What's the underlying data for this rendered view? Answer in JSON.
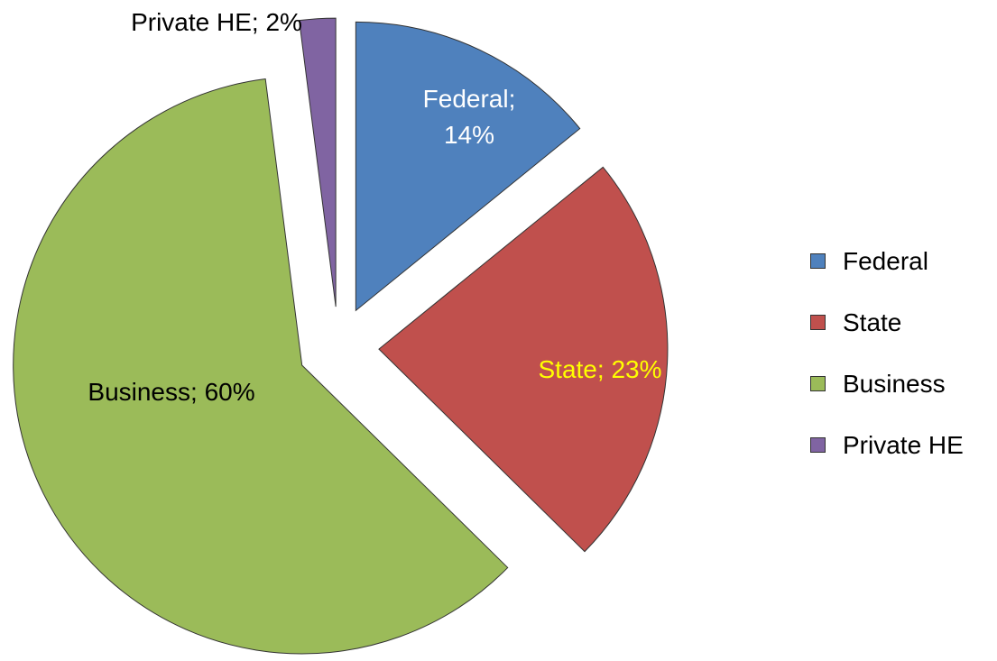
{
  "chart_data": {
    "type": "pie",
    "categories": [
      "Federal",
      "State",
      "Business",
      "Private HE"
    ],
    "values": [
      14,
      23,
      60,
      2
    ],
    "value_labels": [
      "Federal; 14%",
      "State; 23%",
      "Business; 60%",
      "Private HE; 2%"
    ],
    "colors": [
      "#4f81bd",
      "#c0504d",
      "#9bbb59",
      "#8064a2"
    ],
    "label_colors": [
      "#ffffff",
      "#ffff00",
      "#000000",
      "#000000"
    ],
    "exploded": true,
    "legend": "right"
  }
}
